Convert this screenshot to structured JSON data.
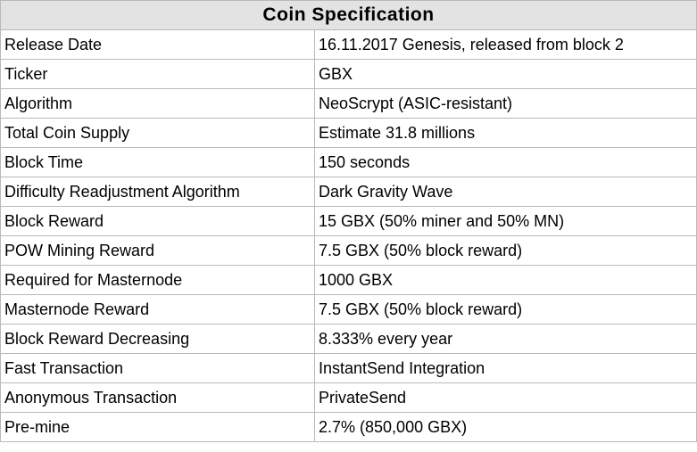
{
  "title": "Coin Specification",
  "rows": [
    {
      "label": "Release Date",
      "value": "16.11.2017 Genesis, released from block 2"
    },
    {
      "label": "Ticker",
      "value": "GBX"
    },
    {
      "label": "Algorithm",
      "value": "NeoScrypt (ASIC-resistant)"
    },
    {
      "label": "Total Coin Supply",
      "value": "Estimate 31.8 millions"
    },
    {
      "label": "Block Time",
      "value": "150 seconds"
    },
    {
      "label": "Difficulty Readjustment Algorithm",
      "value": "Dark Gravity Wave"
    },
    {
      "label": "Block Reward",
      "value": "15 GBX (50% miner and 50% MN)"
    },
    {
      "label": "POW Mining Reward",
      "value": "7.5 GBX (50% block reward)"
    },
    {
      "label": "Required for Masternode",
      "value": "1000 GBX"
    },
    {
      "label": "Masternode Reward",
      "value": "7.5 GBX (50% block reward)"
    },
    {
      "label": "Block Reward Decreasing",
      "value": "8.333% every year"
    },
    {
      "label": "Fast Transaction",
      "value": "InstantSend Integration"
    },
    {
      "label": "Anonymous Transaction",
      "value": "PrivateSend"
    },
    {
      "label": "Pre-mine",
      "value": "2.7% (850,000 GBX)"
    }
  ]
}
